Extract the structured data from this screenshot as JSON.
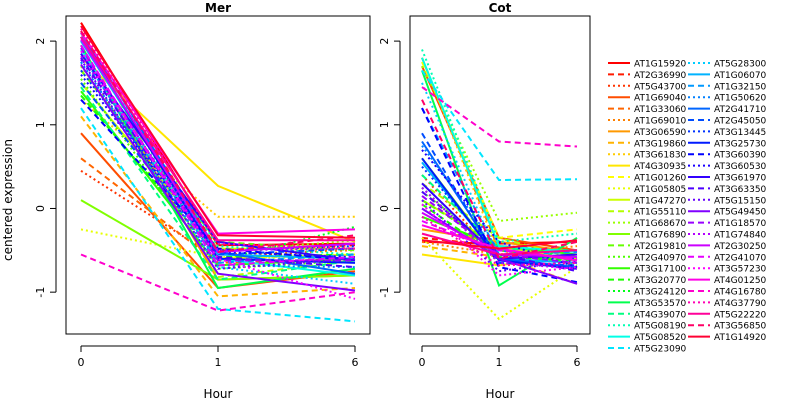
{
  "chart_data": {
    "type": "line",
    "ylabel": "centered expression",
    "xlabel": "Hour",
    "x": [
      0,
      1,
      6
    ],
    "x_tick_labels": [
      "0",
      "1",
      "6"
    ],
    "ylim": [
      -1.5,
      2.3
    ],
    "y_ticks": [
      -1,
      0,
      1,
      2
    ],
    "y_tick_labels": [
      "-1",
      "0",
      "1",
      "2"
    ],
    "grid": false,
    "legend_position": "right",
    "genes": [
      {
        "name": "AT1G15920",
        "color": "#ff0000",
        "dash": "solid"
      },
      {
        "name": "AT2G36990",
        "color": "#ff1a00",
        "dash": "dashed"
      },
      {
        "name": "AT5G43700",
        "color": "#ff3300",
        "dash": "dotted"
      },
      {
        "name": "AT1G69040",
        "color": "#ff4d00",
        "dash": "solid"
      },
      {
        "name": "AT1G33060",
        "color": "#ff6600",
        "dash": "dashed"
      },
      {
        "name": "AT1G69010",
        "color": "#ff8000",
        "dash": "dotted"
      },
      {
        "name": "AT3G06590",
        "color": "#ff9900",
        "dash": "solid"
      },
      {
        "name": "AT3G19860",
        "color": "#ffb300",
        "dash": "dashed"
      },
      {
        "name": "AT3G61830",
        "color": "#ffcc00",
        "dash": "dotted"
      },
      {
        "name": "AT4G30935",
        "color": "#ffe600",
        "dash": "solid"
      },
      {
        "name": "AT1G01260",
        "color": "#ffff00",
        "dash": "dashed"
      },
      {
        "name": "AT1G05805",
        "color": "#e6ff00",
        "dash": "dotted"
      },
      {
        "name": "AT1G47270",
        "color": "#ccff00",
        "dash": "solid"
      },
      {
        "name": "AT1G55110",
        "color": "#b3ff00",
        "dash": "dashed"
      },
      {
        "name": "AT1G68670",
        "color": "#99ff00",
        "dash": "dotted"
      },
      {
        "name": "AT1G76890",
        "color": "#80ff00",
        "dash": "solid"
      },
      {
        "name": "AT2G19810",
        "color": "#66ff00",
        "dash": "dashed"
      },
      {
        "name": "AT2G40970",
        "color": "#4dff00",
        "dash": "dotted"
      },
      {
        "name": "AT3G17100",
        "color": "#33ff00",
        "dash": "solid"
      },
      {
        "name": "AT3G20770",
        "color": "#1aff00",
        "dash": "dashed"
      },
      {
        "name": "AT3G24120",
        "color": "#00ff1a",
        "dash": "dotted"
      },
      {
        "name": "AT3G53570",
        "color": "#00ff4d",
        "dash": "solid"
      },
      {
        "name": "AT4G39070",
        "color": "#00ff80",
        "dash": "dashed"
      },
      {
        "name": "AT5G08190",
        "color": "#00ffb3",
        "dash": "dotted"
      },
      {
        "name": "AT5G08520",
        "color": "#00ffe6",
        "dash": "solid"
      },
      {
        "name": "AT5G23090",
        "color": "#00e6ff",
        "dash": "dashed"
      },
      {
        "name": "AT5G28300",
        "color": "#00ccff",
        "dash": "dotted"
      },
      {
        "name": "AT1G06070",
        "color": "#00b3ff",
        "dash": "solid"
      },
      {
        "name": "AT1G32150",
        "color": "#0099ff",
        "dash": "dashed"
      },
      {
        "name": "AT1G50620",
        "color": "#0080ff",
        "dash": "dotted"
      },
      {
        "name": "AT2G41710",
        "color": "#0066ff",
        "dash": "solid"
      },
      {
        "name": "AT2G45050",
        "color": "#004dff",
        "dash": "dashed"
      },
      {
        "name": "AT3G13445",
        "color": "#0033ff",
        "dash": "dotted"
      },
      {
        "name": "AT3G25730",
        "color": "#001aff",
        "dash": "solid"
      },
      {
        "name": "AT3G60390",
        "color": "#0000ff",
        "dash": "dashed"
      },
      {
        "name": "AT3G60530",
        "color": "#1a00ff",
        "dash": "dotted"
      },
      {
        "name": "AT3G61970",
        "color": "#3300ff",
        "dash": "solid"
      },
      {
        "name": "AT3G63350",
        "color": "#4d00ff",
        "dash": "dashed"
      },
      {
        "name": "AT5G15150",
        "color": "#6600ff",
        "dash": "dotted"
      },
      {
        "name": "AT5G49450",
        "color": "#8000ff",
        "dash": "solid"
      },
      {
        "name": "AT1G18570",
        "color": "#9900ff",
        "dash": "dashed"
      },
      {
        "name": "AT1G74840",
        "color": "#b300ff",
        "dash": "dotted"
      },
      {
        "name": "AT2G30250",
        "color": "#cc00ff",
        "dash": "solid"
      },
      {
        "name": "AT2G41070",
        "color": "#e600ff",
        "dash": "dashed"
      },
      {
        "name": "AT3G57230",
        "color": "#ff00ff",
        "dash": "dotted"
      },
      {
        "name": "AT4G01250",
        "color": "#ff00e6",
        "dash": "solid"
      },
      {
        "name": "AT4G16780",
        "color": "#ff00cc",
        "dash": "dashed"
      },
      {
        "name": "AT4G37790",
        "color": "#ff00b3",
        "dash": "dotted"
      },
      {
        "name": "AT5G22220",
        "color": "#ff0099",
        "dash": "solid"
      },
      {
        "name": "AT3G56850",
        "color": "#ff0066",
        "dash": "dashed"
      },
      {
        "name": "AT1G14920",
        "color": "#ff0033",
        "dash": "solid"
      }
    ],
    "panels": [
      {
        "title": "Mer",
        "values": [
          [
            2.22,
            -0.44,
            -0.42
          ],
          [
            2.12,
            -0.5,
            -0.44
          ],
          [
            0.45,
            -0.6,
            -0.48
          ],
          [
            0.9,
            -0.95,
            -0.75
          ],
          [
            0.6,
            -0.65,
            -0.6
          ],
          [
            1.7,
            -0.55,
            -0.5
          ],
          [
            1.95,
            -0.85,
            -0.8
          ],
          [
            1.1,
            -1.05,
            -0.95
          ],
          [
            1.3,
            -0.1,
            -0.1
          ],
          [
            1.8,
            0.27,
            -0.4
          ],
          [
            1.85,
            -0.6,
            -0.55
          ],
          [
            -0.25,
            -0.58,
            -0.6
          ],
          [
            1.5,
            -0.48,
            -0.48
          ],
          [
            2.1,
            -0.82,
            -0.62
          ],
          [
            1.7,
            -0.52,
            -0.38
          ],
          [
            0.1,
            -0.85,
            -0.8
          ],
          [
            1.65,
            -0.4,
            -0.5
          ],
          [
            1.55,
            -0.72,
            -0.62
          ],
          [
            1.4,
            -0.68,
            -0.6
          ],
          [
            1.35,
            -0.58,
            -0.55
          ],
          [
            2.05,
            -0.62,
            -0.22
          ],
          [
            1.95,
            -0.95,
            -0.72
          ],
          [
            1.45,
            -0.85,
            -0.62
          ],
          [
            2.0,
            -0.45,
            -0.55
          ],
          [
            1.9,
            -0.6,
            -0.8
          ],
          [
            1.2,
            -1.2,
            -1.35
          ],
          [
            1.75,
            -0.7,
            -0.9
          ],
          [
            2.0,
            -0.55,
            -0.6
          ],
          [
            1.85,
            -0.65,
            -0.55
          ],
          [
            1.75,
            -0.68,
            -0.7
          ],
          [
            2.1,
            -0.52,
            -0.78
          ],
          [
            1.5,
            -0.55,
            -0.48
          ],
          [
            1.65,
            -0.5,
            -0.45
          ],
          [
            2.05,
            -0.6,
            -0.65
          ],
          [
            1.3,
            -0.48,
            -0.62
          ],
          [
            1.6,
            -0.52,
            -0.58
          ],
          [
            1.85,
            -0.4,
            -0.62
          ],
          [
            1.8,
            -0.58,
            -0.7
          ],
          [
            1.78,
            -0.72,
            -0.6
          ],
          [
            1.72,
            -0.78,
            -0.98
          ],
          [
            1.92,
            -0.62,
            -0.62
          ],
          [
            1.82,
            -0.5,
            -0.48
          ],
          [
            2.02,
            -0.52,
            -0.42
          ],
          [
            1.95,
            -0.68,
            -0.58
          ],
          [
            1.88,
            -0.6,
            -1.08
          ],
          [
            2.1,
            -0.3,
            -0.25
          ],
          [
            -0.55,
            -1.22,
            -1.0
          ],
          [
            2.15,
            -0.42,
            -0.48
          ],
          [
            2.05,
            -0.38,
            -0.38
          ],
          [
            2.12,
            -0.52,
            -0.32
          ],
          [
            2.18,
            -0.32,
            -0.35
          ]
        ]
      },
      {
        "title": "Cot",
        "values": [
          [
            -0.4,
            -0.42,
            -0.4
          ],
          [
            -0.35,
            -0.45,
            -0.5
          ],
          [
            0.4,
            -0.6,
            -0.55
          ],
          [
            1.7,
            -0.35,
            -0.5
          ],
          [
            1.8,
            -0.5,
            -0.62
          ],
          [
            -0.4,
            -0.55,
            -0.45
          ],
          [
            -0.25,
            -0.4,
            -0.52
          ],
          [
            -0.45,
            -0.58,
            -0.9
          ],
          [
            1.8,
            -0.55,
            -0.6
          ],
          [
            -0.55,
            -0.68,
            -0.55
          ],
          [
            1.75,
            -0.35,
            -0.25
          ],
          [
            -0.35,
            -1.32,
            -0.7
          ],
          [
            0.1,
            -0.45,
            -0.62
          ],
          [
            0.3,
            -0.35,
            -0.6
          ],
          [
            1.7,
            -0.15,
            -0.05
          ],
          [
            0.6,
            -0.6,
            -0.55
          ],
          [
            0.1,
            -0.48,
            -0.68
          ],
          [
            0.2,
            -0.5,
            -0.6
          ],
          [
            -0.1,
            -0.45,
            -0.55
          ],
          [
            0.05,
            -0.58,
            -0.62
          ],
          [
            0.25,
            -0.62,
            -0.55
          ],
          [
            1.65,
            -0.92,
            -0.35
          ],
          [
            0.4,
            -0.48,
            -0.5
          ],
          [
            1.9,
            -0.4,
            -0.3
          ],
          [
            1.8,
            -0.45,
            -0.52
          ],
          [
            1.65,
            0.34,
            0.35
          ],
          [
            1.5,
            -0.6,
            -0.55
          ],
          [
            0.55,
            -0.6,
            -0.65
          ],
          [
            1.2,
            -0.55,
            -0.52
          ],
          [
            0.75,
            -0.5,
            -0.62
          ],
          [
            0.8,
            -0.6,
            -0.7
          ],
          [
            0.9,
            -0.65,
            -0.68
          ],
          [
            0.5,
            -0.55,
            -0.6
          ],
          [
            0.6,
            -0.62,
            -0.72
          ],
          [
            1.2,
            -0.7,
            -0.88
          ],
          [
            0.7,
            -0.4,
            -0.7
          ],
          [
            0.3,
            -0.6,
            -0.55
          ],
          [
            0.2,
            -0.55,
            -0.75
          ],
          [
            0.1,
            -0.75,
            -0.62
          ],
          [
            0.0,
            -0.6,
            -0.9
          ],
          [
            0.15,
            -0.55,
            -0.65
          ],
          [
            0.25,
            -0.65,
            -0.72
          ],
          [
            -0.05,
            -0.55,
            -0.58
          ],
          [
            -0.15,
            -0.5,
            -0.6
          ],
          [
            0.05,
            -0.8,
            -0.7
          ],
          [
            -0.2,
            -0.48,
            -0.62
          ],
          [
            1.45,
            0.8,
            0.74
          ],
          [
            -0.1,
            -0.68,
            -0.65
          ],
          [
            -0.3,
            -0.55,
            -0.5
          ],
          [
            1.3,
            -0.6,
            -0.4
          ],
          [
            -0.38,
            -0.48,
            -0.38
          ]
        ]
      }
    ]
  }
}
